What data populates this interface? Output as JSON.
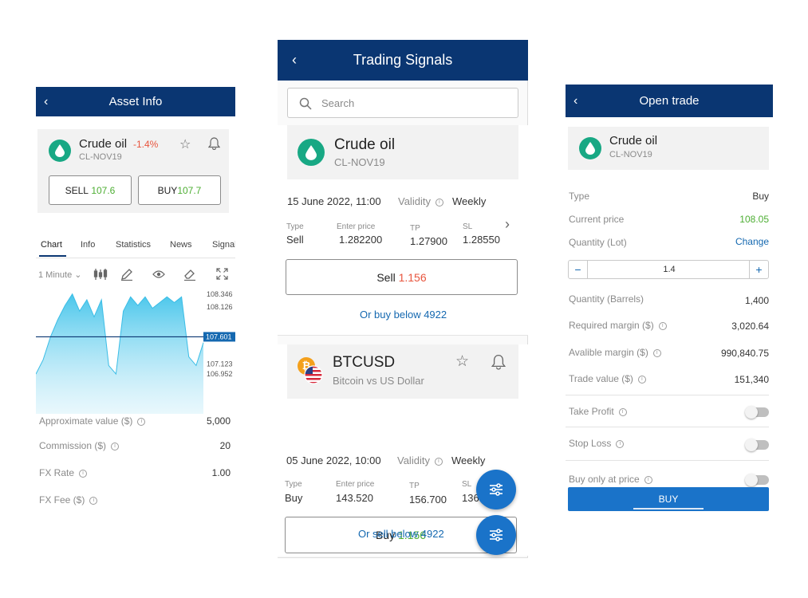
{
  "colors": {
    "brand": "#0a3672",
    "up": "#4dae33",
    "down": "#e8553e",
    "link": "#1468b0",
    "teal": "#18a884"
  },
  "asset_info": {
    "title": "Asset Info",
    "asset": {
      "name": "Crude oil",
      "change": "-1.4%",
      "symbol": "CL-NOV19"
    },
    "sell_label": "SELL",
    "sell_price": "107.6",
    "buy_label": "BUY",
    "buy_price": "107.7",
    "tabs": [
      "Chart",
      "Info",
      "Statistics",
      "News",
      "Signals"
    ],
    "interval": "1 Minute",
    "price_axis": [
      "108.346",
      "108.126",
      "107.123",
      "106.952"
    ],
    "current_price": "107.601",
    "stats": [
      {
        "label": "Approximate value ($)",
        "value": "5,000"
      },
      {
        "label": "Commission ($)",
        "value": "20"
      },
      {
        "label": "FX Rate",
        "value": "1.00"
      },
      {
        "label": "FX Fee ($)",
        "value": ""
      }
    ],
    "chart_data": {
      "type": "area",
      "y_ticks": [
        108.346,
        108.126,
        107.123,
        106.952
      ],
      "current": 107.601,
      "values": [
        106.95,
        107.2,
        107.6,
        107.9,
        108.15,
        108.35,
        108.05,
        108.25,
        107.95,
        108.25,
        107.1,
        106.95,
        108.05,
        108.3,
        108.15,
        108.3,
        108.1,
        108.2,
        108.3,
        108.2,
        108.3,
        107.25,
        107.1,
        107.5
      ]
    }
  },
  "signals": {
    "title": "Trading Signals",
    "search_placeholder": "Search",
    "cards": [
      {
        "name": "Crude oil",
        "symbol": "CL-NOV19",
        "datetime": "15 June 2022, 11:00",
        "validity_label": "Validity",
        "validity": "Weekly",
        "type_label": "Type",
        "type": "Sell",
        "enter_label": "Enter price",
        "enter": "1.282200",
        "tp_label": "TP",
        "tp": "1.27900",
        "sl_label": "SL",
        "sl": "1.28550",
        "action_label": "Sell",
        "action_price": "1.156",
        "alt_link": "Or buy below 4922"
      },
      {
        "name": "BTCUSD",
        "symbol": "Bitcoin vs US Dollar",
        "datetime": "05 June 2022, 10:00",
        "validity_label": "Validity",
        "validity": "Weekly",
        "type_label": "Type",
        "type": "Buy",
        "enter_label": "Enter price",
        "enter": "143.520",
        "tp_label": "TP",
        "tp": "156.700",
        "sl_label": "SL",
        "sl": "136.100",
        "action_label": "Buy",
        "action_price": "1.156",
        "alt_link": "Or sell below 4922"
      }
    ]
  },
  "open_trade": {
    "title": "Open trade",
    "asset": {
      "name": "Crude oil",
      "symbol": "CL-NOV19"
    },
    "type_label": "Type",
    "type": "Buy",
    "current_price_label": "Current price",
    "current_price": "108.05",
    "quantity_label": "Quantity (Lot)",
    "change_link": "Change",
    "quantity": "1.4",
    "rows": [
      {
        "label": "Quantity (Barrels)",
        "value": "1,400"
      },
      {
        "label": "Required margin ($)",
        "value": "3,020.64"
      },
      {
        "label": "Avalible margin ($)",
        "value": "990,840.75"
      },
      {
        "label": "Trade value ($)",
        "value": "151,340"
      }
    ],
    "toggles": [
      "Take Profit",
      "Stop Loss",
      "Buy only at price"
    ],
    "buy_label": "BUY"
  }
}
